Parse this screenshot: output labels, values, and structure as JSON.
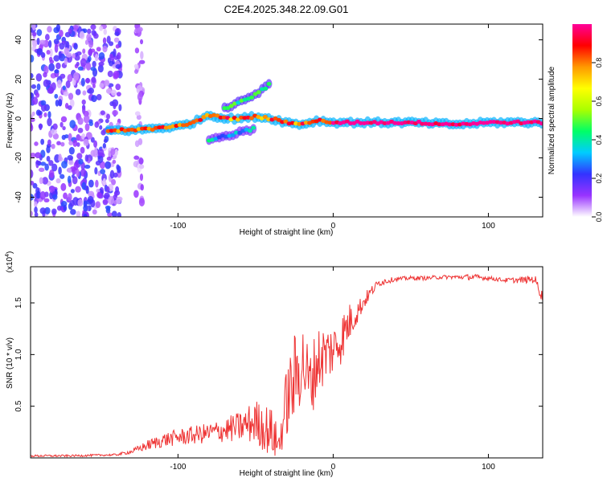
{
  "figure_title": "C2E4.2025.348.22.09.G01",
  "colors": {
    "snr_line": "#ee3333",
    "axis": "#000000"
  },
  "chart_data": [
    {
      "type": "heatmap",
      "title": "C2E4.2025.348.22.09.G01",
      "xlabel": "Height of straight line (km)",
      "ylabel": "Frequency (Hz)",
      "xlim": [
        -195,
        135
      ],
      "ylim": [
        -50,
        48
      ],
      "xticks": [
        -100,
        0,
        100
      ],
      "yticks": [
        -40,
        -20,
        0,
        20,
        40
      ],
      "xtick_labels": [
        "-100",
        "0",
        "100"
      ],
      "ytick_labels": [
        "-40",
        "-20",
        "0",
        "20",
        "40"
      ],
      "colorbar": {
        "label": "Normalized spectral amplitude",
        "range": [
          0.0,
          1.0
        ],
        "ticks": [
          0.0,
          0.2,
          0.4,
          0.6,
          0.8
        ],
        "tick_labels": [
          "0.0",
          "0.2",
          "0.4",
          "0.6",
          "0.8"
        ],
        "colormap": [
          "#ffffff",
          "#9933ff",
          "#3333ff",
          "#00ccff",
          "#00ff66",
          "#aaff00",
          "#ffff00",
          "#ff9900",
          "#ff0000",
          "#ff0099"
        ]
      },
      "features": [
        {
          "name": "noise-region",
          "x_range": [
            -195,
            -137
          ],
          "y_range": [
            -50,
            48
          ],
          "amplitude": 0.1
        },
        {
          "name": "noise-stripe",
          "x_range": [
            -127,
            -123
          ],
          "y_range": [
            -50,
            48
          ],
          "amplitude": 0.05
        },
        {
          "name": "signal-trace",
          "points": [
            [
              -145,
              -6
            ],
            [
              -130,
              -6
            ],
            [
              -115,
              -5
            ],
            [
              -100,
              -4
            ],
            [
              -90,
              -2
            ],
            [
              -80,
              2
            ],
            [
              -70,
              0
            ],
            [
              -60,
              0
            ],
            [
              -50,
              1
            ],
            [
              -40,
              0
            ],
            [
              -30,
              -2
            ],
            [
              -20,
              -3
            ],
            [
              -10,
              -1
            ],
            [
              0,
              -2
            ],
            [
              10,
              -2
            ],
            [
              50,
              -2
            ],
            [
              80,
              -3
            ],
            [
              100,
              -2
            ],
            [
              135,
              -2
            ]
          ],
          "amplitude": 0.9
        },
        {
          "name": "upper-branch",
          "points": [
            [
              -70,
              5
            ],
            [
              -60,
              9
            ],
            [
              -50,
              12
            ],
            [
              -40,
              18
            ]
          ],
          "amplitude": 0.5
        },
        {
          "name": "lower-branch",
          "points": [
            [
              -80,
              -11
            ],
            [
              -70,
              -9
            ],
            [
              -60,
              -7
            ],
            [
              -50,
              -5
            ]
          ],
          "amplitude": 0.4
        }
      ]
    },
    {
      "type": "line",
      "xlabel": "Height of straight line (km)",
      "ylabel": "SNR (10 * v/v)",
      "scale_label": "(x10",
      "scale_exp": "4",
      "xlim": [
        -195,
        135
      ],
      "ylim": [
        0,
        1.85
      ],
      "xticks": [
        -100,
        0,
        100
      ],
      "yticks": [
        0.5,
        1.0,
        1.5
      ],
      "xtick_labels": [
        "-100",
        "0",
        "100"
      ],
      "ytick_labels": [
        "0.5",
        "1.0",
        "1.5"
      ],
      "series": [
        {
          "name": "SNR",
          "x": [
            -195,
            -170,
            -140,
            -130,
            -120,
            -110,
            -100,
            -90,
            -80,
            -70,
            -60,
            -50,
            -40,
            -35,
            -30,
            -25,
            -20,
            -15,
            -10,
            -5,
            0,
            5,
            10,
            15,
            20,
            25,
            30,
            40,
            50,
            60,
            70,
            80,
            90,
            100,
            110,
            120,
            130,
            135
          ],
          "y": [
            0.02,
            0.02,
            0.03,
            0.06,
            0.12,
            0.17,
            0.2,
            0.22,
            0.24,
            0.27,
            0.3,
            0.35,
            0.25,
            0.12,
            0.55,
            0.75,
            0.95,
            0.7,
            0.95,
            1.0,
            1.05,
            1.15,
            1.3,
            1.4,
            1.52,
            1.62,
            1.7,
            1.73,
            1.74,
            1.74,
            1.75,
            1.75,
            1.75,
            1.74,
            1.72,
            1.72,
            1.73,
            1.55
          ],
          "noise_amplitude": [
            0.01,
            0.01,
            0.01,
            0.02,
            0.05,
            0.07,
            0.08,
            0.09,
            0.1,
            0.12,
            0.15,
            0.22,
            0.25,
            0.15,
            0.35,
            0.45,
            0.4,
            0.35,
            0.35,
            0.3,
            0.25,
            0.25,
            0.2,
            0.12,
            0.08,
            0.05,
            0.04,
            0.02,
            0.02,
            0.02,
            0.02,
            0.02,
            0.03,
            0.02,
            0.02,
            0.03,
            0.04,
            0.06
          ]
        }
      ]
    }
  ]
}
